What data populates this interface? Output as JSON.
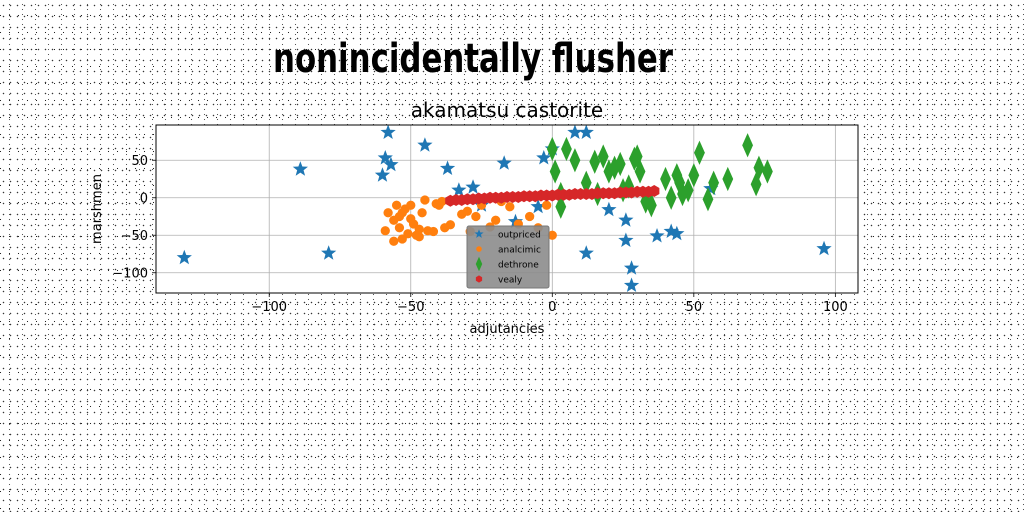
{
  "suptitle": "nonincidentally flusher",
  "chart_data": {
    "type": "scatter",
    "title": "akamatsu castorite",
    "xlabel": "adjutancies",
    "ylabel": "marshmen",
    "xlim": [
      -140,
      108
    ],
    "ylim": [
      -127,
      97
    ],
    "xticks": [
      -100,
      -50,
      0,
      50,
      100
    ],
    "yticks": [
      50,
      0,
      -50,
      -100
    ],
    "xtick_labels": [
      "−100",
      "−50",
      "0",
      "50",
      "100"
    ],
    "ytick_labels": [
      "50",
      "0",
      "−50",
      "−100"
    ],
    "grid": true,
    "legend_position": "lower-center",
    "series": [
      {
        "name": "outpriced",
        "marker": "star",
        "color": "#1f77b4",
        "x": [
          -130,
          -89,
          -79,
          -60,
          -59,
          -58,
          -57,
          -45,
          -37,
          -33,
          -28,
          -17,
          -13,
          -3,
          0,
          8,
          12,
          12,
          20,
          26,
          26,
          28,
          28,
          37,
          42,
          44,
          56,
          96,
          -25,
          -5
        ],
        "y": [
          -80,
          38,
          -74,
          30,
          53,
          87,
          44,
          70,
          39,
          10,
          14,
          46,
          -32,
          53,
          65,
          87,
          87,
          -74,
          -16,
          -30,
          -57,
          -94,
          -117,
          -51,
          -45,
          -48,
          12,
          -68,
          -10,
          -12
        ]
      },
      {
        "name": "analcimic",
        "marker": "circle",
        "color": "#ff7f0e",
        "x": [
          -59,
          -58,
          -56,
          -55,
          -54,
          -54,
          -53,
          -52,
          -51,
          -50,
          -49,
          -48,
          -47,
          -46,
          -45,
          -44,
          -42,
          -40,
          -39,
          -38,
          -36,
          -32,
          -30,
          -29,
          -27,
          -25,
          -22,
          -20,
          -18,
          -15,
          -12,
          -8,
          -5,
          -2,
          0,
          -50,
          -47,
          -53,
          -56,
          -41
        ],
        "y": [
          -44,
          -20,
          -58,
          -10,
          -25,
          -40,
          -55,
          -15,
          -48,
          -28,
          -35,
          -50,
          -52,
          -20,
          -3,
          -44,
          -45,
          -10,
          -5,
          -40,
          -36,
          -22,
          -18,
          -45,
          -25,
          -10,
          -39,
          -30,
          -5,
          -12,
          -35,
          -25,
          -40,
          -10,
          -50,
          -10,
          -42,
          -20,
          -30,
          -8
        ]
      },
      {
        "name": "dethrone",
        "marker": "thin_diamond",
        "color": "#2ca02c",
        "x": [
          0,
          1,
          3,
          5,
          8,
          12,
          15,
          18,
          20,
          22,
          25,
          27,
          29,
          30,
          31,
          33,
          35,
          40,
          42,
          44,
          45,
          46,
          48,
          50,
          52,
          55,
          57,
          62,
          69,
          72,
          73,
          76,
          3,
          16,
          24
        ],
        "y": [
          65,
          35,
          5,
          65,
          50,
          20,
          48,
          55,
          35,
          40,
          10,
          15,
          52,
          55,
          35,
          -5,
          -10,
          25,
          0,
          30,
          20,
          5,
          10,
          30,
          60,
          -2,
          20,
          25,
          70,
          18,
          40,
          35,
          -12,
          5,
          45
        ]
      },
      {
        "name": "vealy",
        "marker": "hexagon",
        "color": "#d62728",
        "x": [
          -36,
          -34,
          -32,
          -30,
          -28,
          -26,
          -24,
          -22,
          -20,
          -18,
          -16,
          -14,
          -12,
          -10,
          -8,
          -6,
          -4,
          -2,
          0,
          2,
          4,
          6,
          8,
          10,
          12,
          14,
          16,
          18,
          20,
          22,
          24,
          26,
          28,
          30,
          32,
          34,
          36
        ],
        "y": [
          -4,
          -3,
          -3,
          -2,
          -2,
          -1,
          -1,
          0,
          0,
          0,
          1,
          1,
          1,
          2,
          2,
          2,
          3,
          3,
          3,
          4,
          4,
          4,
          5,
          5,
          5,
          5,
          6,
          6,
          6,
          6,
          7,
          7,
          7,
          8,
          8,
          8,
          9
        ]
      }
    ]
  }
}
